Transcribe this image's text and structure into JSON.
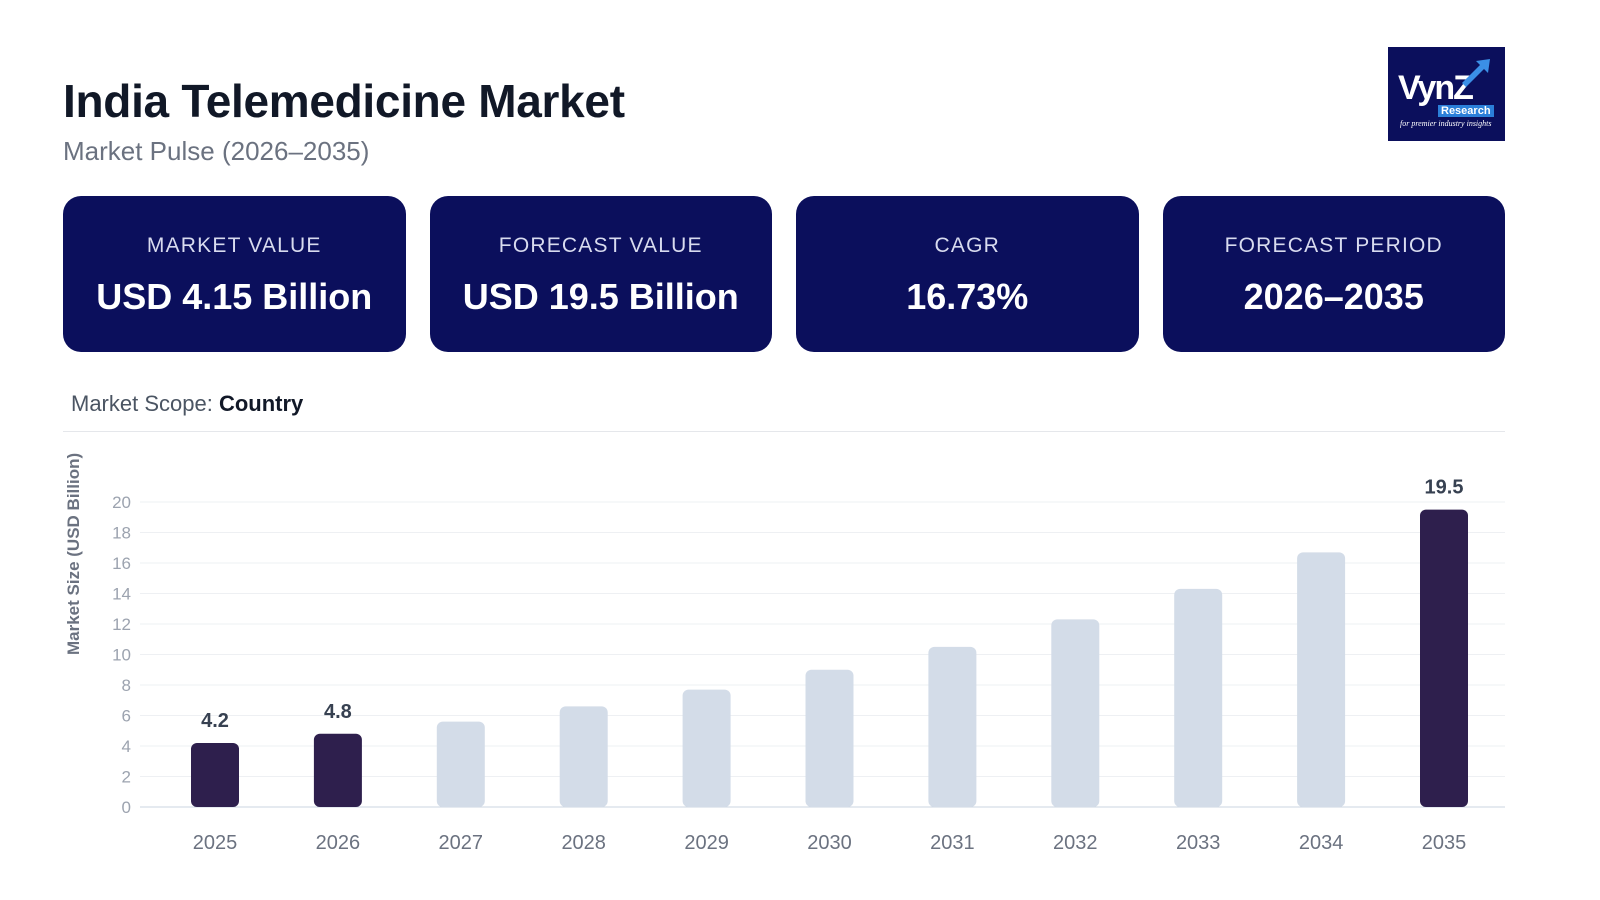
{
  "header": {
    "title": "India Telemedicine Market",
    "subtitle": "Market Pulse (2026–2035)"
  },
  "logo": {
    "brand": "VynZ",
    "sub": "Research",
    "tagline": "for premier industry insights"
  },
  "cards": [
    {
      "label": "MARKET VALUE",
      "value": "USD 4.15 Billion"
    },
    {
      "label": "FORECAST VALUE",
      "value": "USD 19.5 Billion"
    },
    {
      "label": "CAGR",
      "value": "16.73%"
    },
    {
      "label": "FORECAST PERIOD",
      "value": "2026–2035"
    }
  ],
  "scope": {
    "label": "Market Scope:",
    "value": "Country"
  },
  "colors": {
    "card_bg": "#0b0f5c",
    "bar_highlight": "#2e1f4d",
    "bar_default": "#d3dce8"
  },
  "chart_data": {
    "type": "bar",
    "title": "",
    "xlabel": "",
    "ylabel": "Market Size (USD Billion)",
    "ylim": [
      0,
      20
    ],
    "yticks": [
      0,
      2,
      4,
      6,
      8,
      10,
      12,
      14,
      16,
      18,
      20
    ],
    "grid": true,
    "categories": [
      "2025",
      "2026",
      "2027",
      "2028",
      "2029",
      "2030",
      "2031",
      "2032",
      "2033",
      "2034",
      "2035"
    ],
    "values": [
      4.2,
      4.8,
      5.6,
      6.6,
      7.7,
      9.0,
      10.5,
      12.3,
      14.3,
      16.7,
      19.5
    ],
    "highlighted": [
      true,
      true,
      false,
      false,
      false,
      false,
      false,
      false,
      false,
      false,
      true
    ],
    "data_labels": [
      "4.2",
      "4.8",
      "",
      "",
      "",
      "",
      "",
      "",
      "",
      "",
      "19.5"
    ],
    "legend": null
  }
}
